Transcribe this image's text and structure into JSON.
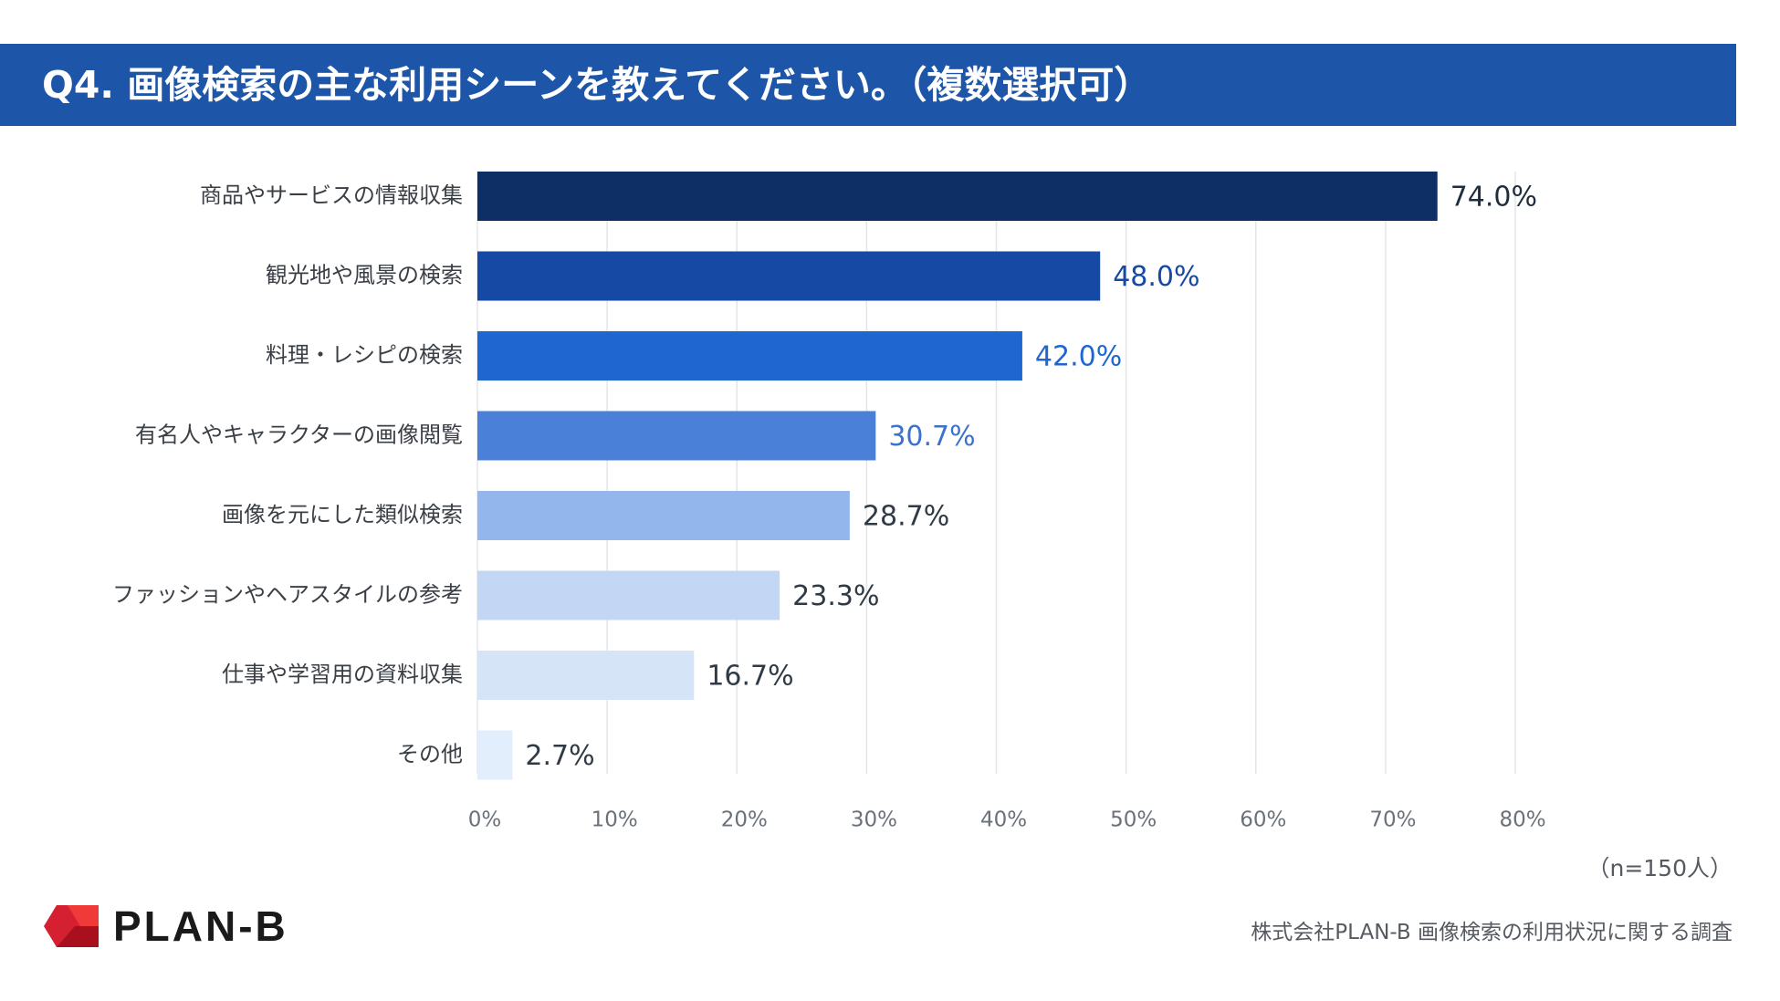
{
  "title": "Q4. 画像検索の主な利用シーンを教えてください。（複数選択可）",
  "chart_data": {
    "type": "bar",
    "orientation": "horizontal",
    "categories": [
      "商品やサービスの情報収集",
      "観光地や風景の検索",
      "料理・レシピの検索",
      "有名人やキャラクターの画像閲覧",
      "画像を元にした類似検索",
      "ファッションやヘアスタイルの参考",
      "仕事や学習用の資料収集",
      "その他"
    ],
    "values": [
      74.0,
      48.0,
      42.0,
      30.7,
      28.7,
      23.3,
      16.7,
      2.7
    ],
    "value_labels": [
      "74.0%",
      "48.0%",
      "42.0%",
      "30.7%",
      "28.7%",
      "23.3%",
      "16.7%",
      "2.7%"
    ],
    "bar_colors": [
      "#0d2f66",
      "#1549a3",
      "#1f66d1",
      "#4a80d8",
      "#93b6ec",
      "#c3d7f4",
      "#d6e4f8",
      "#e3eefc"
    ],
    "label_colors": [
      "#1f2d3d",
      "#1549a3",
      "#1f66d1",
      "#3a72cc",
      "#2f3a45",
      "#2f3a45",
      "#2f3a45",
      "#2f3a45"
    ],
    "xlim": [
      0,
      80
    ],
    "xticks": [
      0,
      10,
      20,
      30,
      40,
      50,
      60,
      70,
      80
    ],
    "xtick_labels": [
      "0%",
      "10%",
      "20%",
      "30%",
      "40%",
      "50%",
      "60%",
      "70%",
      "80%"
    ],
    "grid": true
  },
  "sample_note": "（n=150人）",
  "logo_text": "PLAN-B",
  "source": "株式会社PLAN-B  画像検索の利用状況に関する調査"
}
